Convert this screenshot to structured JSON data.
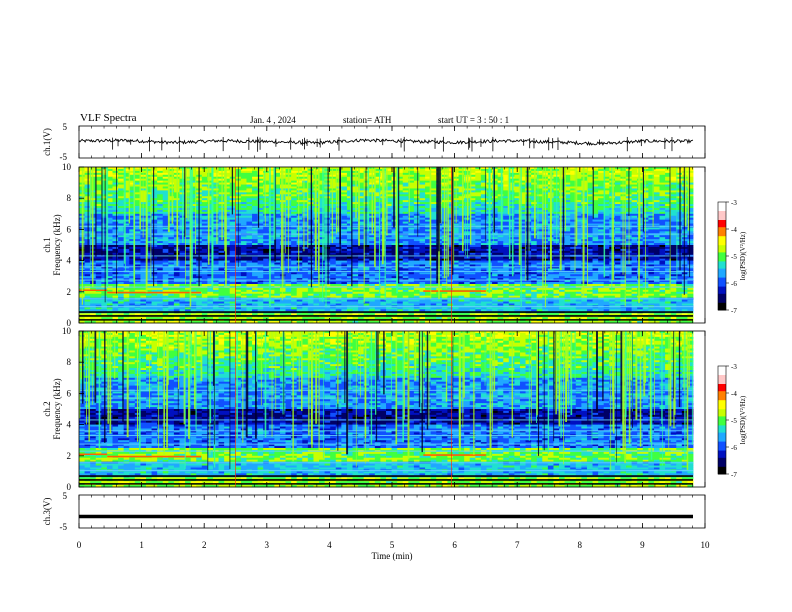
{
  "header": {
    "title": "VLF  Spectra",
    "date": "Jan. 4 , 2024",
    "station": "station= ATH",
    "start": "start  UT  =   3  : 50 : 1"
  },
  "colors": {
    "spectrogram_scale": [
      "#000000",
      "#000066",
      "#0010c0",
      "#1050ff",
      "#20a8ff",
      "#20e0d0",
      "#40ff40",
      "#c8ff00",
      "#ffff00",
      "#ff8000",
      "#ff0000",
      "#ffc8c8",
      "#ffffff"
    ]
  },
  "chart_data": [
    {
      "type": "line",
      "panel": "ch1-waveform",
      "ylabel": "ch.1(V)",
      "ylim": [
        -5,
        5
      ],
      "yticks": [
        "5",
        "-5"
      ],
      "xlim": [
        0,
        10
      ],
      "description_level": 0,
      "series": [
        {
          "values": [
            0.3,
            0.5,
            -0.2,
            0.4,
            0.1,
            -0.3,
            0.6,
            0.2,
            -0.1,
            0.4,
            0.0,
            -0.5,
            0.3,
            0.2
          ]
        }
      ]
    },
    {
      "type": "heatmap",
      "panel": "ch1-spectrogram",
      "ylabel": "ch.1\nFrequency  (kHz)",
      "ylim": [
        0,
        10
      ],
      "yticks": [
        "10",
        "8",
        "6",
        "4",
        "2",
        "0"
      ],
      "xlim": [
        0,
        10
      ],
      "colorbar": {
        "label": "log(PSD)(V²/Hz)",
        "ticks": [
          "-3",
          "-4",
          "-5",
          "-6",
          "-7"
        ],
        "range": [
          -7,
          -3
        ]
      }
    },
    {
      "type": "heatmap",
      "panel": "ch2-spectrogram",
      "ylabel": "ch.2\nFrequency  (kHz)",
      "ylim": [
        0,
        10
      ],
      "yticks": [
        "10",
        "8",
        "6",
        "4",
        "2",
        "0"
      ],
      "xlim": [
        0,
        10
      ],
      "colorbar": {
        "label": "log(PSD)(V²/Hz)",
        "ticks": [
          "-3",
          "-4",
          "-5",
          "-6",
          "-7"
        ],
        "range": [
          -7,
          -3
        ]
      }
    },
    {
      "type": "line",
      "panel": "ch3-waveform",
      "ylabel": "ch.3(V)",
      "ylim": [
        -5,
        5
      ],
      "yticks": [
        "5",
        "-5"
      ],
      "xlim": [
        0,
        10
      ],
      "series": [
        {
          "values": [
            -1.5,
            -1.5
          ]
        }
      ]
    }
  ],
  "xaxis": {
    "label": "Time  (min)",
    "ticks": [
      "0",
      "1",
      "2",
      "3",
      "4",
      "5",
      "6",
      "7",
      "8",
      "9",
      "10"
    ]
  }
}
